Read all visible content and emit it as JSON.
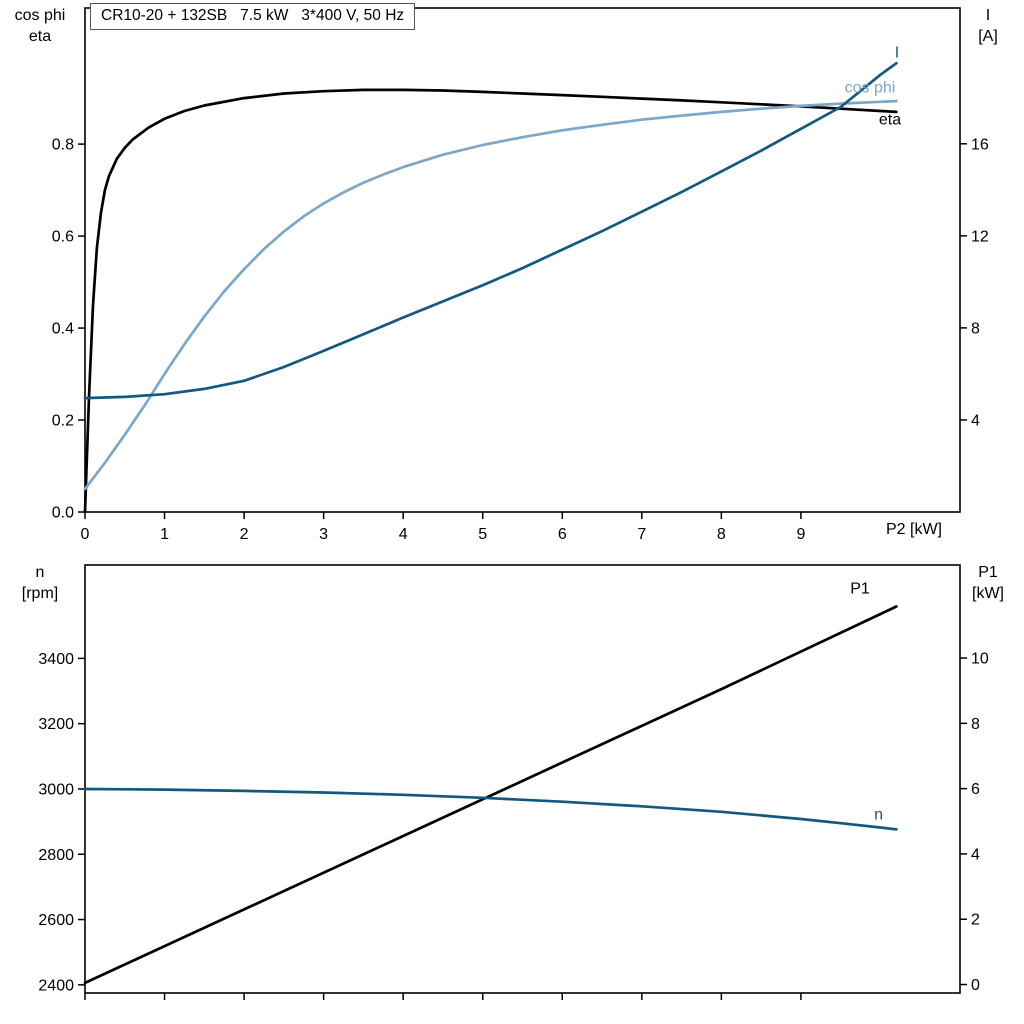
{
  "title_box": "CR10-20 + 132SB   7.5 kW   3*400 V, 50 Hz",
  "colors": {
    "curve_black": "#000000",
    "curve_dark_blue": "#14587f",
    "curve_light_blue": "#7ea6c9",
    "axis_black": "#000000",
    "background": "#ffffff"
  },
  "chart_data": [
    {
      "type": "line",
      "name": "electrical",
      "x_range": [
        0,
        11
      ],
      "x_ticks": [
        0,
        1,
        2,
        3,
        4,
        5,
        6,
        7,
        8,
        9
      ],
      "x_tick_labels": [
        "0",
        "1",
        "2",
        "3",
        "4",
        "5",
        "6",
        "7",
        "8",
        "9"
      ],
      "xlabel": "P2 [kW]",
      "grid": false,
      "left_axis": {
        "title_lines": [
          "cos phi",
          "eta"
        ],
        "range": [
          0,
          1.096
        ],
        "ticks": [
          0,
          0.2,
          0.4,
          0.6,
          0.8
        ],
        "tick_labels": [
          "0.0",
          "0.2",
          "0.4",
          "0.6",
          "0.8"
        ]
      },
      "right_axis": {
        "title_lines": [
          "I",
          "[A]"
        ],
        "range": [
          0,
          21.9
        ],
        "ticks": [
          4,
          8,
          12,
          16
        ],
        "tick_labels": [
          "4",
          "8",
          "12",
          "16"
        ]
      },
      "series": [
        {
          "name": "eta",
          "axis": "left",
          "color": "#000000",
          "x": [
            0,
            0.05,
            0.1,
            0.15,
            0.2,
            0.25,
            0.3,
            0.4,
            0.5,
            0.6,
            0.8,
            1.0,
            1.25,
            1.5,
            2.0,
            2.5,
            3.0,
            3.5,
            4.0,
            4.5,
            5.0,
            5.5,
            6.0,
            6.5,
            7.0,
            7.5,
            8.0,
            8.5,
            9.0,
            9.5,
            10.0,
            10.2
          ],
          "y": [
            0,
            0.25,
            0.45,
            0.575,
            0.65,
            0.7,
            0.73,
            0.768,
            0.792,
            0.81,
            0.836,
            0.855,
            0.872,
            0.884,
            0.9,
            0.91,
            0.915,
            0.918,
            0.918,
            0.9165,
            0.9135,
            0.91,
            0.9065,
            0.903,
            0.899,
            0.895,
            0.891,
            0.8865,
            0.882,
            0.877,
            0.872,
            0.87
          ]
        },
        {
          "name": "cos phi",
          "axis": "left",
          "color": "#7ea6c9",
          "x": [
            0,
            0.25,
            0.5,
            0.75,
            1.0,
            1.25,
            1.5,
            1.75,
            2.0,
            2.25,
            2.5,
            2.75,
            3.0,
            3.25,
            3.5,
            3.75,
            4.0,
            4.5,
            5.0,
            5.5,
            6.0,
            6.5,
            7.0,
            7.5,
            8.0,
            8.5,
            9.0,
            9.5,
            10.0,
            10.2
          ],
          "y": [
            0.05,
            0.107,
            0.168,
            0.232,
            0.3,
            0.365,
            0.425,
            0.48,
            0.528,
            0.572,
            0.61,
            0.643,
            0.671,
            0.695,
            0.716,
            0.734,
            0.75,
            0.777,
            0.798,
            0.815,
            0.83,
            0.842,
            0.853,
            0.862,
            0.87,
            0.877,
            0.883,
            0.888,
            0.892,
            0.8935
          ]
        },
        {
          "name": "I",
          "axis": "right",
          "color": "#14587f",
          "x": [
            0,
            0.5,
            1.0,
            1.5,
            2.0,
            2.5,
            3.0,
            3.5,
            4.0,
            4.5,
            5.0,
            5.5,
            6.0,
            6.5,
            7.0,
            7.5,
            8.0,
            8.5,
            9.0,
            9.5,
            10.0,
            10.2
          ],
          "y": [
            4.95,
            5.0,
            5.12,
            5.35,
            5.7,
            6.3,
            7.0,
            7.72,
            8.45,
            9.15,
            9.85,
            10.6,
            11.4,
            12.2,
            13.05,
            13.9,
            14.8,
            15.7,
            16.65,
            17.6,
            19.0,
            19.5
          ]
        }
      ],
      "curve_labels": [
        {
          "text": "I",
          "x": 10.18,
          "y": 19.75,
          "axis": "right",
          "color": "#14587f"
        },
        {
          "text": "cos phi",
          "x": 9.55,
          "y": 0.912,
          "axis": "left",
          "color": "#7ea6c9"
        },
        {
          "text": "eta",
          "x": 9.98,
          "y": 0.843,
          "axis": "left",
          "color": "#000000"
        }
      ]
    },
    {
      "type": "line",
      "name": "speed-power",
      "x_range": [
        0,
        11
      ],
      "x_ticks": [
        0,
        1,
        2,
        3,
        4,
        5,
        6,
        7,
        8,
        9
      ],
      "x_tick_labels": null,
      "xlabel": null,
      "grid": false,
      "left_axis": {
        "title_lines": [
          "n",
          "[rpm]"
        ],
        "range": [
          2375,
          3686
        ],
        "ticks": [
          2400,
          2600,
          2800,
          3000,
          3200,
          3400
        ],
        "tick_labels": [
          "2400",
          "2600",
          "2800",
          "3000",
          "3200",
          "3400"
        ]
      },
      "right_axis": {
        "title_lines": [
          "P1",
          "[kW]"
        ],
        "range": [
          -0.26,
          12.85
        ],
        "ticks": [
          0,
          2,
          4,
          6,
          8,
          10
        ],
        "tick_labels": [
          "0",
          "2",
          "4",
          "6",
          "8",
          "10"
        ]
      },
      "series": [
        {
          "name": "P1",
          "axis": "right",
          "color": "#000000",
          "x": [
            0,
            2,
            4,
            6,
            8,
            10,
            10.2
          ],
          "y": [
            0.05,
            2.3,
            4.55,
            6.8,
            9.05,
            11.35,
            11.58
          ]
        },
        {
          "name": "n",
          "axis": "left",
          "color": "#14587f",
          "x": [
            0,
            1,
            2,
            3,
            4,
            5,
            6,
            7,
            8,
            9,
            9.5,
            10,
            10.2
          ],
          "y": [
            3000,
            2998,
            2994,
            2989,
            2982,
            2973,
            2961,
            2947,
            2930,
            2908,
            2895,
            2882,
            2876
          ]
        }
      ],
      "curve_labels": [
        {
          "text": "P1",
          "x": 9.62,
          "y": 11.97,
          "axis": "right",
          "color": "#000000"
        },
        {
          "text": "n",
          "x": 9.92,
          "y": 2906,
          "axis": "left",
          "color": "#14587f"
        }
      ]
    }
  ]
}
